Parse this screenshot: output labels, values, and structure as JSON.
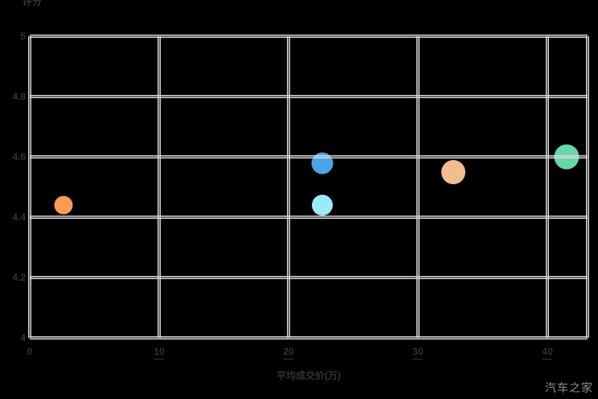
{
  "chart_data": {
    "type": "scatter",
    "title": "",
    "xlabel": "平均成交价(万)",
    "ylabel": "评分",
    "xlim": [
      0,
      43.1
    ],
    "ylim": [
      4,
      5
    ],
    "grid": true,
    "legend_position": "none",
    "x_ticks": [
      {
        "label": "0",
        "value": 0,
        "underlined": false
      },
      {
        "label": "10",
        "value": 10,
        "underlined": true
      },
      {
        "label": "20",
        "value": 20,
        "underlined": true
      },
      {
        "label": "30",
        "value": 30,
        "underlined": true
      },
      {
        "label": "40",
        "value": 40,
        "underlined": true
      }
    ],
    "y_ticks": [
      {
        "label": "5",
        "value": 5.0
      },
      {
        "label": "4.8",
        "value": 4.8
      },
      {
        "label": "4.6",
        "value": 4.6
      },
      {
        "label": "4.4",
        "value": 4.4
      },
      {
        "label": "4.2",
        "value": 4.2
      },
      {
        "label": "4",
        "value": 4.0
      }
    ],
    "series": [
      {
        "name": "point-1",
        "x": 2.6,
        "y": 4.44,
        "size": 23,
        "color": "#F79B57"
      },
      {
        "name": "point-2",
        "x": 22.6,
        "y": 4.58,
        "size": 27,
        "color": "#4AA4E8"
      },
      {
        "name": "point-3",
        "x": 22.6,
        "y": 4.44,
        "size": 26,
        "color": "#9CE9F8"
      },
      {
        "name": "point-4",
        "x": 32.7,
        "y": 4.55,
        "size": 30,
        "color": "#F3BD92"
      },
      {
        "name": "point-5",
        "x": 41.5,
        "y": 4.6,
        "size": 31,
        "color": "#66D7A8"
      }
    ],
    "watermark": "汽车之家",
    "colors": {
      "background": "#000000",
      "gridline": "#d8d8d8",
      "tick_text": "#333333",
      "watermark_text": "#8f8f8f"
    }
  }
}
